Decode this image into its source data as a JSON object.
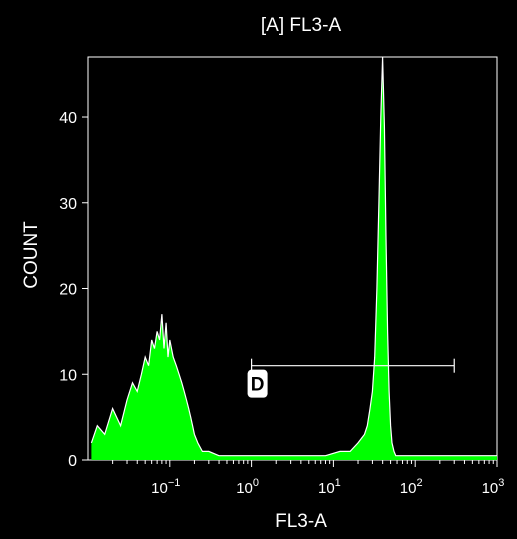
{
  "chart_data": {
    "type": "area",
    "title": "[A] FL3-A",
    "xlabel": "FL3-A",
    "ylabel": "COUNT",
    "x_scale": "log",
    "xlim": [
      0.01,
      1000
    ],
    "ylim": [
      0,
      47
    ],
    "x_ticks": [
      {
        "value": 0.1,
        "base": "10",
        "exp": "−1"
      },
      {
        "value": 1,
        "base": "10",
        "exp": "0"
      },
      {
        "value": 10,
        "base": "10",
        "exp": "1"
      },
      {
        "value": 100,
        "base": "10",
        "exp": "2"
      },
      {
        "value": 1000,
        "base": "10",
        "exp": "3"
      }
    ],
    "y_ticks": [
      0,
      10,
      20,
      30,
      40
    ],
    "grid": false,
    "colors": {
      "background": "#000000",
      "axes": "#ffffff",
      "fill": "#00ff00",
      "outline": "#ffffff",
      "text": "#ffffff"
    },
    "series": [
      {
        "x": [
          0.011,
          0.013,
          0.016,
          0.02,
          0.025,
          0.03,
          0.035,
          0.04,
          0.045,
          0.05,
          0.055,
          0.06,
          0.065,
          0.07,
          0.075,
          0.08,
          0.085,
          0.09,
          0.095,
          0.1,
          0.11,
          0.12,
          0.13,
          0.14,
          0.15,
          0.16,
          0.17,
          0.18,
          0.19,
          0.2,
          0.22,
          0.25,
          0.3,
          0.4,
          0.6,
          1,
          2,
          4,
          8,
          12,
          16,
          20,
          24,
          26,
          28,
          30,
          32,
          34,
          36,
          38,
          40,
          42,
          44,
          46,
          48,
          50,
          52,
          55,
          58,
          62,
          70,
          90,
          150,
          300,
          1000
        ],
        "values": [
          2,
          4,
          3,
          6,
          4,
          7,
          9,
          8,
          10,
          12,
          11,
          14,
          13,
          15,
          14,
          17,
          13,
          16,
          12,
          14,
          12,
          11,
          10,
          9,
          8,
          7,
          6,
          5,
          4,
          3,
          2,
          1,
          1,
          0.5,
          0.5,
          0.5,
          0.5,
          0.5,
          0.5,
          1,
          1,
          2,
          3,
          4,
          6,
          8,
          12,
          20,
          30,
          40,
          47,
          39,
          26,
          15,
          8,
          4,
          2,
          1,
          0.5,
          0.5,
          0.5,
          0.5,
          0.5,
          0.5,
          0.5
        ]
      }
    ],
    "gate": {
      "label": "D",
      "x_start": 1,
      "x_end": 300,
      "y": 11
    }
  }
}
